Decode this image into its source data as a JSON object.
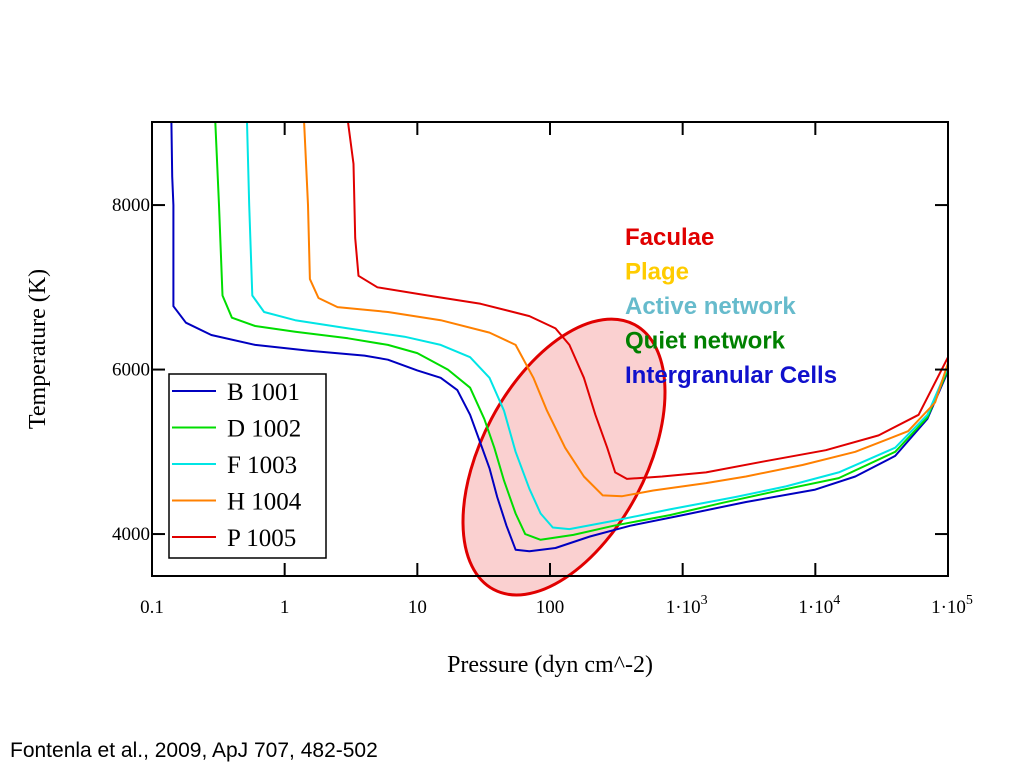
{
  "chart_data": {
    "type": "line",
    "title": "",
    "xlabel": "Pressure (dyn cm^-2)",
    "ylabel": "Temperature (K)",
    "xscale": "log",
    "xlim": [
      0.1,
      100000
    ],
    "ylim": [
      3490,
      9010
    ],
    "grid": false,
    "x_ticks": [
      {
        "value": 0.1,
        "label": "0.1",
        "sup": ""
      },
      {
        "value": 1,
        "label": "1",
        "sup": ""
      },
      {
        "value": 10,
        "label": "10",
        "sup": ""
      },
      {
        "value": 100,
        "label": "100",
        "sup": ""
      },
      {
        "value": 1000,
        "label": "1·10",
        "sup": "3"
      },
      {
        "value": 10000,
        "label": "1·10",
        "sup": "4"
      },
      {
        "value": 100000,
        "label": "1·10",
        "sup": "5"
      }
    ],
    "y_ticks": [
      {
        "value": 4000,
        "label": "4000"
      },
      {
        "value": 6000,
        "label": "6000"
      },
      {
        "value": 8000,
        "label": "8000"
      }
    ],
    "legend": {
      "placement": "lower-left"
    },
    "series": [
      {
        "name": "B 1001",
        "color": "#0000c0",
        "points": [
          [
            0.14,
            9010
          ],
          [
            0.142,
            8350
          ],
          [
            0.145,
            8000
          ],
          [
            0.145,
            6770
          ],
          [
            0.18,
            6570
          ],
          [
            0.28,
            6420
          ],
          [
            0.6,
            6300
          ],
          [
            1.5,
            6230
          ],
          [
            4,
            6170
          ],
          [
            6,
            6120
          ],
          [
            10,
            5990
          ],
          [
            15,
            5900
          ],
          [
            20,
            5750
          ],
          [
            25,
            5450
          ],
          [
            30,
            5100
          ],
          [
            35,
            4800
          ],
          [
            40,
            4450
          ],
          [
            47,
            4100
          ],
          [
            55,
            3810
          ],
          [
            70,
            3790
          ],
          [
            110,
            3830
          ],
          [
            200,
            3970
          ],
          [
            400,
            4100
          ],
          [
            1000,
            4230
          ],
          [
            3000,
            4390
          ],
          [
            10000,
            4540
          ],
          [
            20000,
            4700
          ],
          [
            40000,
            4950
          ],
          [
            70000,
            5400
          ],
          [
            100000,
            5980
          ]
        ]
      },
      {
        "name": "D 1002",
        "color": "#00dd00",
        "points": [
          [
            0.3,
            9010
          ],
          [
            0.32,
            8000
          ],
          [
            0.34,
            6900
          ],
          [
            0.4,
            6630
          ],
          [
            0.6,
            6530
          ],
          [
            1.2,
            6460
          ],
          [
            3,
            6380
          ],
          [
            6,
            6300
          ],
          [
            10,
            6200
          ],
          [
            17,
            6000
          ],
          [
            25,
            5780
          ],
          [
            32,
            5400
          ],
          [
            38,
            5050
          ],
          [
            45,
            4650
          ],
          [
            55,
            4250
          ],
          [
            65,
            4000
          ],
          [
            85,
            3930
          ],
          [
            150,
            3990
          ],
          [
            300,
            4100
          ],
          [
            800,
            4230
          ],
          [
            2000,
            4380
          ],
          [
            5000,
            4520
          ],
          [
            15000,
            4680
          ],
          [
            40000,
            5000
          ],
          [
            70000,
            5420
          ],
          [
            100000,
            6000
          ]
        ]
      },
      {
        "name": "F 1003",
        "color": "#00e5e5",
        "points": [
          [
            0.52,
            9010
          ],
          [
            0.54,
            8000
          ],
          [
            0.57,
            6900
          ],
          [
            0.7,
            6700
          ],
          [
            1.2,
            6600
          ],
          [
            3,
            6500
          ],
          [
            8,
            6400
          ],
          [
            15,
            6300
          ],
          [
            25,
            6150
          ],
          [
            35,
            5900
          ],
          [
            45,
            5500
          ],
          [
            55,
            5000
          ],
          [
            70,
            4550
          ],
          [
            85,
            4250
          ],
          [
            105,
            4080
          ],
          [
            140,
            4060
          ],
          [
            300,
            4160
          ],
          [
            800,
            4300
          ],
          [
            2500,
            4450
          ],
          [
            6000,
            4580
          ],
          [
            15000,
            4750
          ],
          [
            40000,
            5050
          ],
          [
            70000,
            5450
          ],
          [
            100000,
            6030
          ]
        ]
      },
      {
        "name": "H 1004",
        "color": "#ff8000",
        "points": [
          [
            1.4,
            9010
          ],
          [
            1.5,
            8000
          ],
          [
            1.55,
            7100
          ],
          [
            1.8,
            6870
          ],
          [
            2.5,
            6760
          ],
          [
            6,
            6700
          ],
          [
            15,
            6600
          ],
          [
            35,
            6450
          ],
          [
            55,
            6300
          ],
          [
            75,
            5900
          ],
          [
            95,
            5500
          ],
          [
            130,
            5050
          ],
          [
            180,
            4700
          ],
          [
            250,
            4470
          ],
          [
            350,
            4460
          ],
          [
            600,
            4530
          ],
          [
            1500,
            4620
          ],
          [
            3000,
            4700
          ],
          [
            8000,
            4840
          ],
          [
            20000,
            5000
          ],
          [
            50000,
            5250
          ],
          [
            80000,
            5600
          ],
          [
            100000,
            6080
          ]
        ]
      },
      {
        "name": "P 1005",
        "color": "#e00000",
        "points": [
          [
            3.0,
            9010
          ],
          [
            3.3,
            8500
          ],
          [
            3.4,
            7600
          ],
          [
            3.6,
            7140
          ],
          [
            5,
            7000
          ],
          [
            12,
            6900
          ],
          [
            30,
            6800
          ],
          [
            70,
            6650
          ],
          [
            110,
            6500
          ],
          [
            140,
            6300
          ],
          [
            180,
            5900
          ],
          [
            220,
            5450
          ],
          [
            270,
            5050
          ],
          [
            310,
            4750
          ],
          [
            380,
            4670
          ],
          [
            700,
            4700
          ],
          [
            1500,
            4750
          ],
          [
            4000,
            4880
          ],
          [
            12000,
            5020
          ],
          [
            30000,
            5200
          ],
          [
            60000,
            5450
          ],
          [
            100000,
            6150
          ]
        ]
      }
    ],
    "annotations": [
      {
        "text": "Faculae",
        "color": "#e00000"
      },
      {
        "text": "Plage",
        "color": "#ffcc00"
      },
      {
        "text": "Active network",
        "color": "#66bbcc"
      },
      {
        "text": "Quiet network",
        "color": "#008000"
      },
      {
        "text": "Intergranular Cells",
        "color": "#1010cc"
      }
    ],
    "highlight_ellipse": {
      "center": [
        100,
        4900
      ],
      "stroke": "#e00000",
      "fill": "#f8c0c0"
    }
  },
  "citation": "Fontenla et al., 2009, ApJ 707, 482-502"
}
